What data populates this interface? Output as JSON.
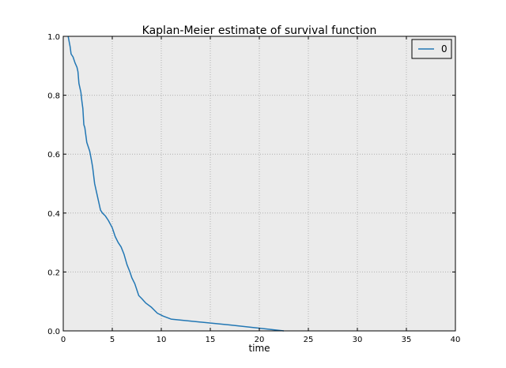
{
  "chart_data": {
    "type": "line",
    "title": "Kaplan-Meier estimate of survival function",
    "xlabel": "time",
    "ylabel": "",
    "xlim": [
      0,
      40
    ],
    "ylim": [
      0,
      1.0
    ],
    "x_ticks": [
      "0",
      "5",
      "10",
      "15",
      "20",
      "25",
      "30",
      "35",
      "40"
    ],
    "y_ticks": [
      "0.0",
      "0.2",
      "0.4",
      "0.6",
      "0.8",
      "1.0"
    ],
    "grid": true,
    "legend_position": "top-right",
    "colors": {
      "plot_background": "#ebebeb",
      "series": "#2277b4",
      "grid": "#b0b0b0"
    },
    "series": [
      {
        "name": "0",
        "x": [
          0.5,
          0.7,
          0.8,
          1.0,
          1.2,
          1.4,
          1.5,
          1.6,
          1.8,
          1.9,
          2.0,
          2.1,
          2.2,
          2.4,
          2.5,
          2.7,
          2.9,
          3.0,
          3.2,
          3.4,
          3.6,
          3.8,
          4.0,
          4.3,
          4.6,
          5.0,
          5.3,
          5.6,
          5.9,
          6.2,
          6.5,
          6.8,
          7.0,
          7.3,
          7.7,
          8.0,
          8.4,
          9.0,
          9.6,
          10.2,
          11.0,
          17.0,
          22.5
        ],
        "y": [
          1.0,
          0.965,
          0.94,
          0.93,
          0.91,
          0.895,
          0.88,
          0.84,
          0.81,
          0.78,
          0.755,
          0.7,
          0.69,
          0.64,
          0.63,
          0.61,
          0.575,
          0.555,
          0.5,
          0.47,
          0.44,
          0.41,
          0.4,
          0.39,
          0.375,
          0.35,
          0.32,
          0.3,
          0.285,
          0.26,
          0.225,
          0.2,
          0.18,
          0.16,
          0.12,
          0.11,
          0.095,
          0.08,
          0.06,
          0.05,
          0.04,
          0.02,
          0.0
        ]
      }
    ]
  }
}
